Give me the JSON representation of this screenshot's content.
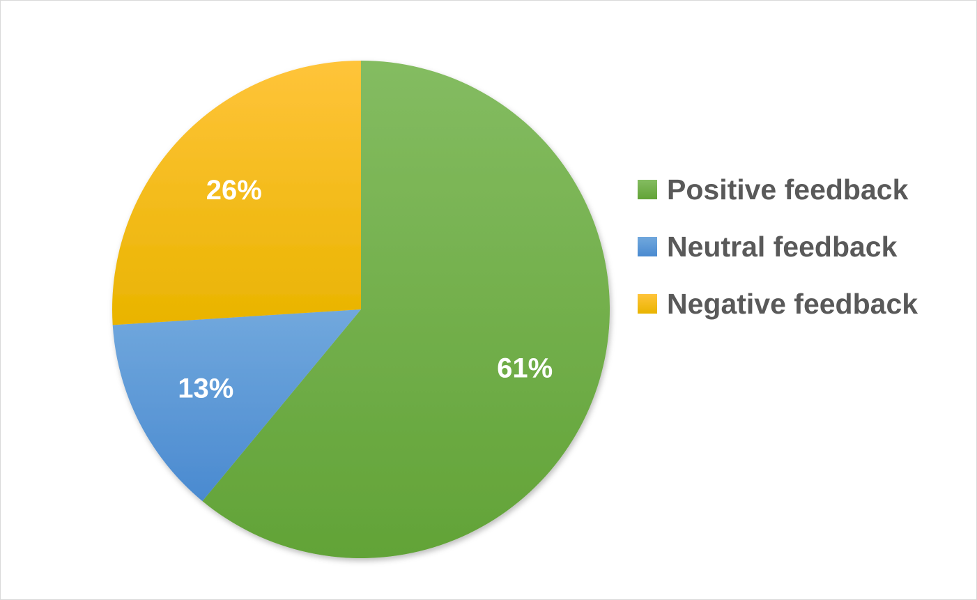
{
  "chart_data": {
    "type": "pie",
    "title": "",
    "start_angle_deg": 0,
    "direction": "clockwise",
    "slices": [
      {
        "name": "Positive feedback",
        "value": 61,
        "label": "61%",
        "color": "#70ad47",
        "color_light": "#84bc61",
        "color_dark": "#62a337"
      },
      {
        "name": "Neutral feedback",
        "value": 13,
        "label": "13%",
        "color": "#5b9bd5",
        "color_light": "#71a8dd",
        "color_dark": "#4a8ad0"
      },
      {
        "name": "Negative feedback",
        "value": 26,
        "label": "26%",
        "color": "#ffc000",
        "color_light": "#ffc43a",
        "color_dark": "#e9b400"
      }
    ],
    "legend": {
      "position": "right",
      "items": [
        "Positive feedback",
        "Neutral feedback",
        "Negative feedback"
      ]
    }
  }
}
